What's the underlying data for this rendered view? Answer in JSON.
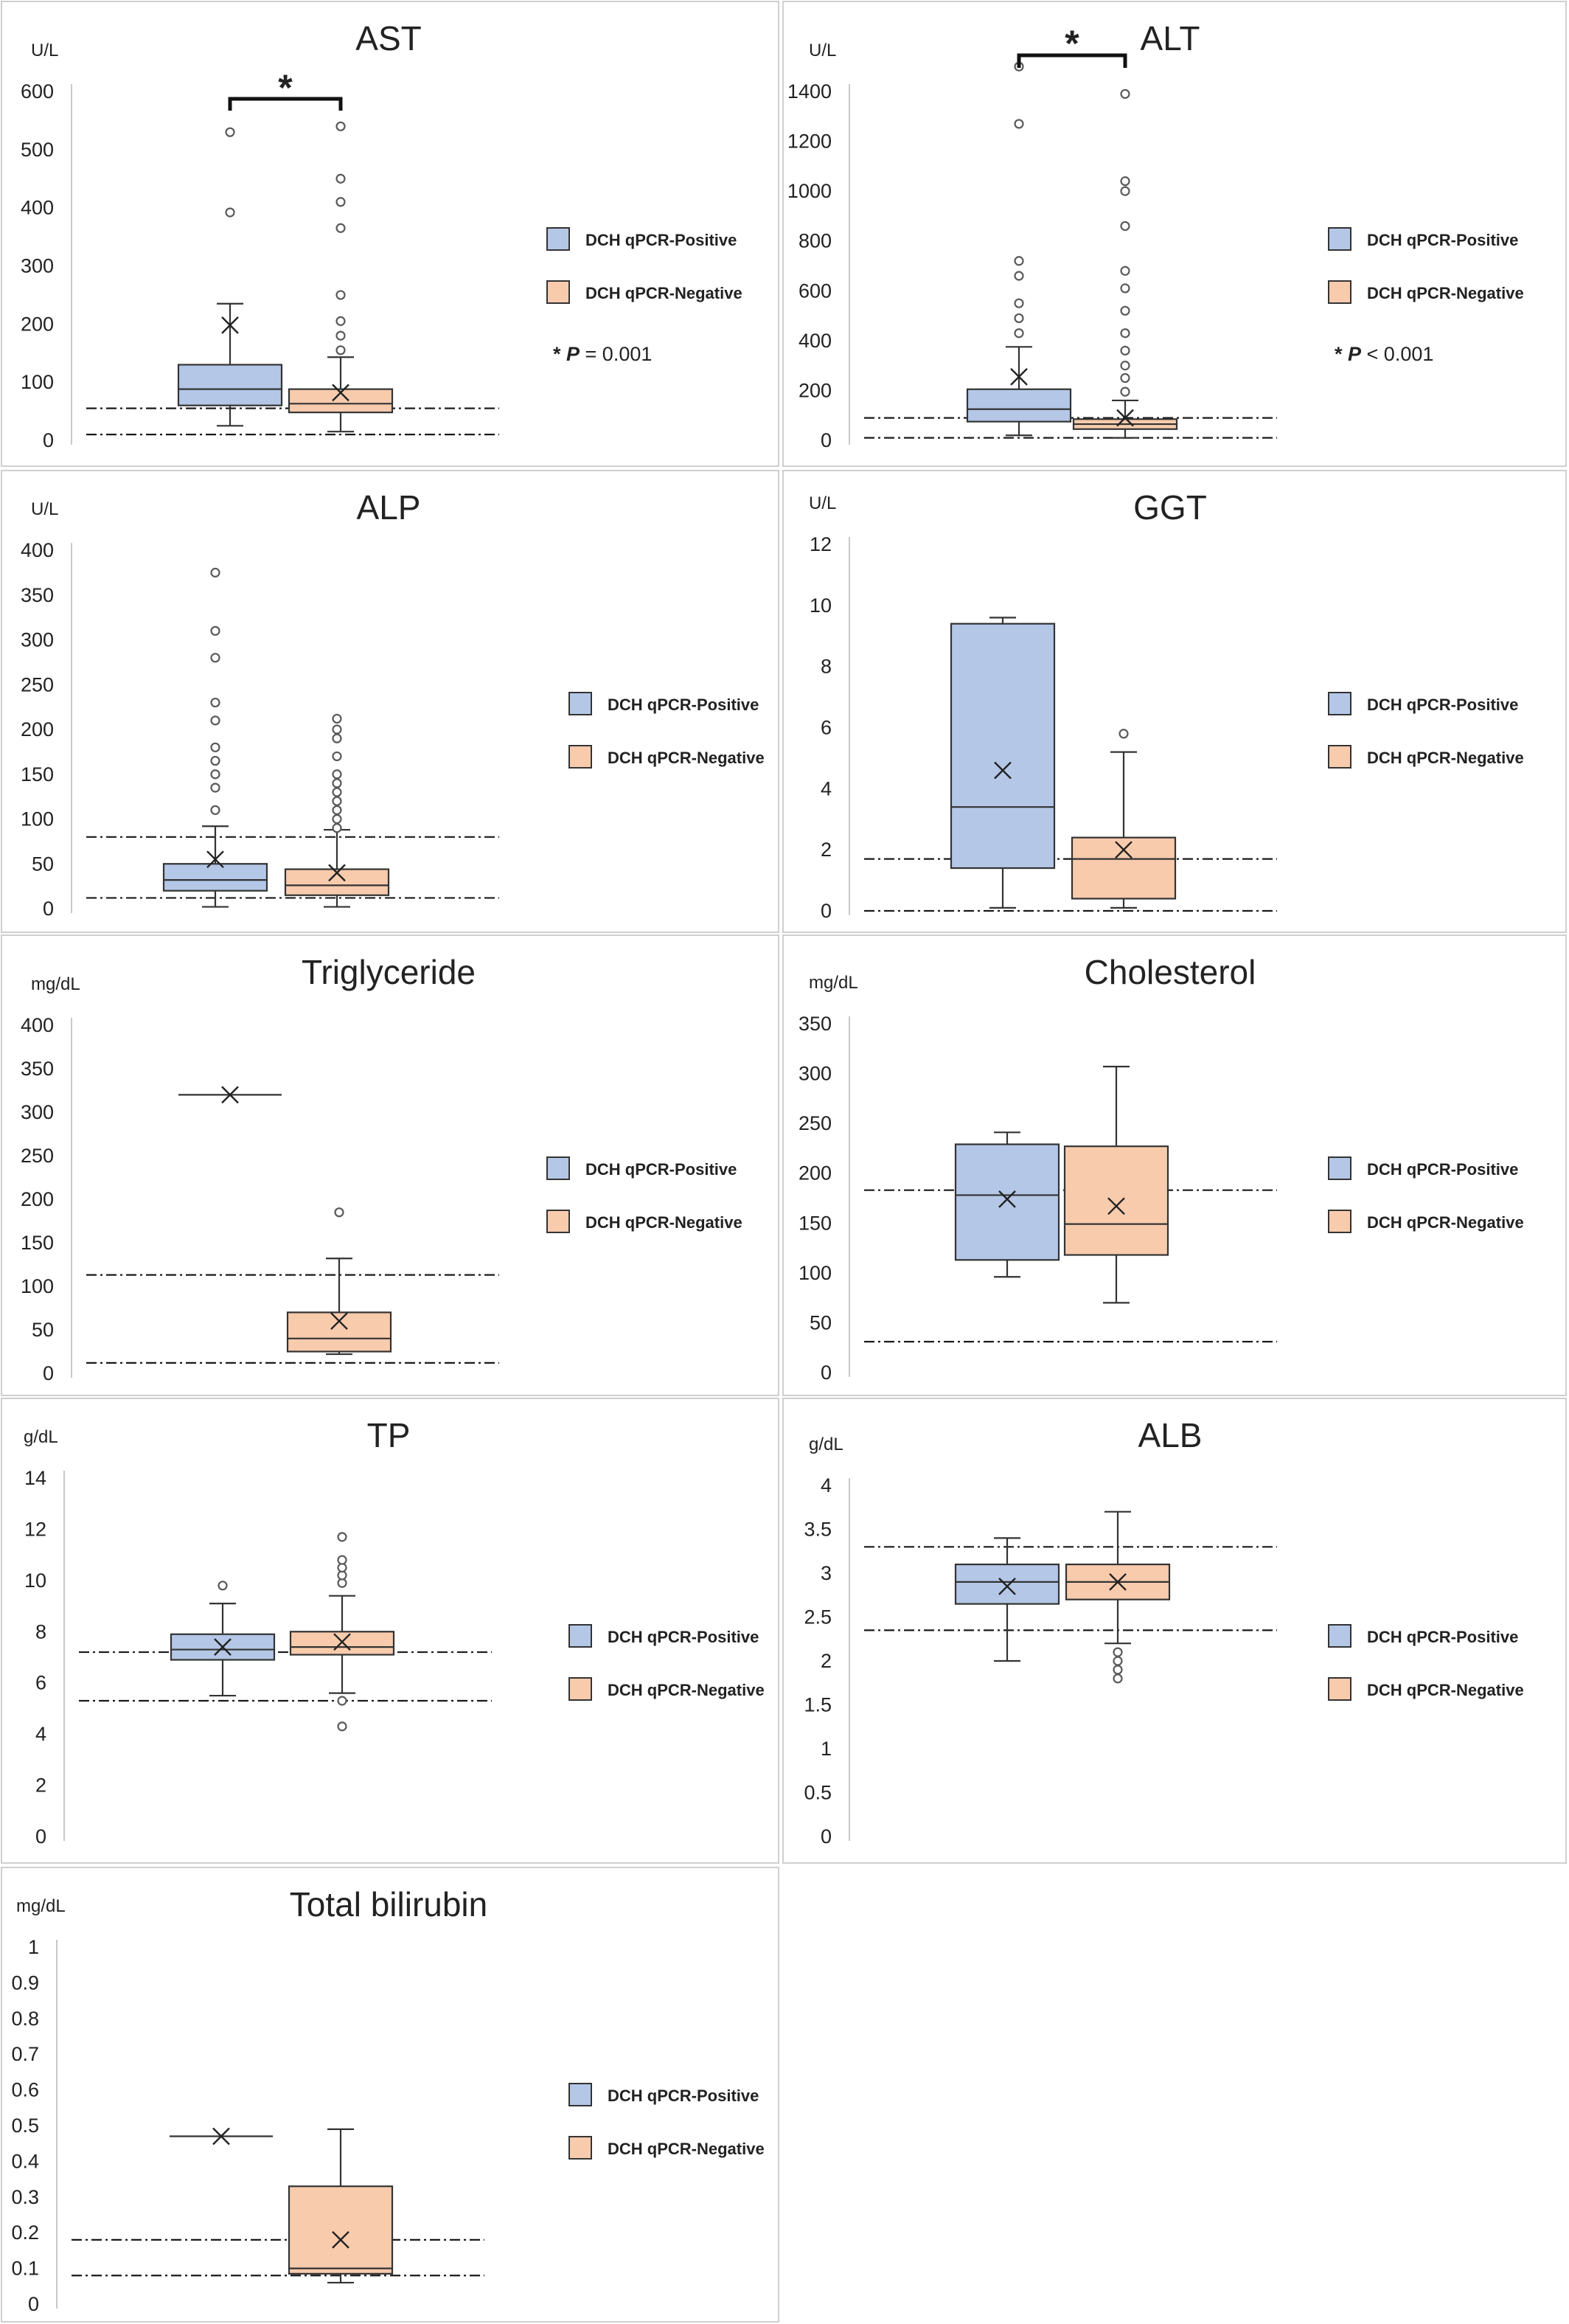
{
  "legend": {
    "positive": "DCH qPCR-Positive",
    "negative": "DCH qPCR-Negative"
  },
  "colors": {
    "positive_fill": "#b4c7e7",
    "negative_fill": "#f8cbad",
    "stroke": "#333333",
    "outlier_stroke": "#5a5a5a",
    "axis": "#c8c8c8",
    "ref_line": "#1a1a1a",
    "panel_border": "#cfcfcf"
  },
  "chart_data": [
    {
      "type": "box",
      "title": "AST",
      "unit": "U/L",
      "yticks": [
        0,
        100,
        200,
        300,
        400,
        500,
        600
      ],
      "ylim": [
        0,
        600
      ],
      "reference_lines": [
        55,
        10
      ],
      "significance": {
        "star": "*",
        "text": "P = 0.001",
        "star_prefix": "*",
        "p_label": "P",
        "p_rest": " = 0.001"
      },
      "series": [
        {
          "name": "DCH qPCR-Positive",
          "whisker_low": 25,
          "q1": 60,
          "median": 88,
          "q3": 130,
          "whisker_high": 235,
          "mean": 198,
          "outliers": [
            392,
            530
          ]
        },
        {
          "name": "DCH qPCR-Negative",
          "whisker_low": 15,
          "q1": 48,
          "median": 63,
          "q3": 88,
          "whisker_high": 143,
          "mean": 82,
          "outliers": [
            155,
            180,
            205,
            250,
            365,
            410,
            450,
            540
          ]
        }
      ]
    },
    {
      "type": "box",
      "title": "ALT",
      "unit": "U/L",
      "yticks": [
        0,
        200,
        400,
        600,
        800,
        1000,
        1200,
        1400
      ],
      "ylim": [
        0,
        1400
      ],
      "reference_lines": [
        90,
        10
      ],
      "significance": {
        "star": "*",
        "star_prefix": "*",
        "p_label": "P",
        "p_rest": " < 0.001"
      },
      "series": [
        {
          "name": "DCH qPCR-Positive",
          "whisker_low": 20,
          "q1": 75,
          "median": 125,
          "q3": 205,
          "whisker_high": 375,
          "mean": 255,
          "outliers": [
            430,
            490,
            550,
            660,
            720,
            1270,
            1500
          ]
        },
        {
          "name": "DCH qPCR-Negative",
          "whisker_low": 10,
          "q1": 45,
          "median": 65,
          "q3": 85,
          "whisker_high": 160,
          "mean": 90,
          "outliers": [
            195,
            250,
            300,
            360,
            430,
            520,
            610,
            680,
            860,
            1000,
            1040,
            1390
          ]
        }
      ]
    },
    {
      "type": "box",
      "title": "ALP",
      "unit": "U/L",
      "yticks": [
        0,
        50,
        100,
        150,
        200,
        250,
        300,
        350,
        400
      ],
      "ylim": [
        0,
        400
      ],
      "reference_lines": [
        80,
        12
      ],
      "series": [
        {
          "name": "DCH qPCR-Positive",
          "whisker_low": 2,
          "q1": 20,
          "median": 32,
          "q3": 50,
          "whisker_high": 92,
          "mean": 55,
          "outliers": [
            110,
            135,
            150,
            165,
            180,
            210,
            230,
            280,
            310,
            375
          ]
        },
        {
          "name": "DCH qPCR-Negative",
          "whisker_low": 2,
          "q1": 15,
          "median": 26,
          "q3": 44,
          "whisker_high": 88,
          "mean": 40,
          "outliers": [
            90,
            100,
            110,
            120,
            130,
            140,
            150,
            170,
            190,
            200,
            212
          ]
        }
      ]
    },
    {
      "type": "box",
      "title": "GGT",
      "unit": "U/L",
      "yticks": [
        0,
        2,
        4,
        6,
        8,
        10,
        12
      ],
      "ylim": [
        0,
        12
      ],
      "reference_lines": [
        1.7,
        0
      ],
      "series": [
        {
          "name": "DCH qPCR-Positive",
          "whisker_low": 0.1,
          "q1": 1.4,
          "median": 3.4,
          "q3": 9.4,
          "whisker_high": 9.6,
          "mean": 4.6,
          "outliers": []
        },
        {
          "name": "DCH qPCR-Negative",
          "whisker_low": 0.1,
          "q1": 0.4,
          "median": 1.7,
          "q3": 2.4,
          "whisker_high": 5.2,
          "mean": 2.0,
          "outliers": [
            5.8
          ]
        }
      ]
    },
    {
      "type": "box",
      "title": "Triglyceride",
      "unit": "mg/dL",
      "yticks": [
        0,
        50,
        100,
        150,
        200,
        250,
        300,
        350,
        400
      ],
      "ylim": [
        0,
        400
      ],
      "reference_lines": [
        113,
        12
      ],
      "series": [
        {
          "name": "DCH qPCR-Positive",
          "whisker_low": 320,
          "q1": 320,
          "median": 320,
          "q3": 320,
          "whisker_high": 320,
          "mean": 320,
          "outliers": []
        },
        {
          "name": "DCH qPCR-Negative",
          "whisker_low": 22,
          "q1": 25,
          "median": 40,
          "q3": 70,
          "whisker_high": 132,
          "mean": 60,
          "outliers": [
            185
          ]
        }
      ]
    },
    {
      "type": "box",
      "title": "Cholesterol",
      "unit": "mg/dL",
      "yticks": [
        0,
        50,
        100,
        150,
        200,
        250,
        300,
        350
      ],
      "ylim": [
        0,
        350
      ],
      "reference_lines": [
        183,
        31
      ],
      "series": [
        {
          "name": "DCH qPCR-Positive",
          "whisker_low": 96,
          "q1": 113,
          "median": 178,
          "q3": 229,
          "whisker_high": 241,
          "mean": 174,
          "outliers": []
        },
        {
          "name": "DCH qPCR-Negative",
          "whisker_low": 70,
          "q1": 118,
          "median": 149,
          "q3": 227,
          "whisker_high": 307,
          "mean": 167,
          "outliers": []
        }
      ]
    },
    {
      "type": "box",
      "title": "TP",
      "unit": "g/dL",
      "yticks": [
        0,
        2,
        4,
        6,
        8,
        10,
        12,
        14
      ],
      "ylim": [
        0,
        14
      ],
      "reference_lines": [
        7.2,
        5.3
      ],
      "series": [
        {
          "name": "DCH qPCR-Positive",
          "whisker_low": 5.5,
          "q1": 6.9,
          "median": 7.3,
          "q3": 7.9,
          "whisker_high": 9.1,
          "mean": 7.4,
          "outliers": [
            9.8
          ]
        },
        {
          "name": "DCH qPCR-Negative",
          "whisker_low": 5.6,
          "q1": 7.1,
          "median": 7.4,
          "q3": 8.0,
          "whisker_high": 9.4,
          "mean": 7.6,
          "outliers": [
            4.3,
            5.3,
            9.9,
            10.2,
            10.5,
            10.8,
            11.7
          ]
        }
      ]
    },
    {
      "type": "box",
      "title": "ALB",
      "unit": "g/dL",
      "yticks": [
        0,
        0.5,
        1,
        1.5,
        2,
        2.5,
        3,
        3.5,
        4
      ],
      "ylim": [
        0,
        4
      ],
      "reference_lines": [
        3.3,
        2.35
      ],
      "series": [
        {
          "name": "DCH qPCR-Positive",
          "whisker_low": 2.0,
          "q1": 2.65,
          "median": 2.9,
          "q3": 3.1,
          "whisker_high": 3.4,
          "mean": 2.85,
          "outliers": []
        },
        {
          "name": "DCH qPCR-Negative",
          "whisker_low": 2.2,
          "q1": 2.7,
          "median": 2.9,
          "q3": 3.1,
          "whisker_high": 3.7,
          "mean": 2.9,
          "outliers": [
            1.8,
            1.9,
            2.0,
            2.1
          ]
        }
      ]
    },
    {
      "type": "box",
      "title": "Total bilirubin",
      "unit": "mg/dL",
      "yticks": [
        0,
        0.1,
        0.2,
        0.3,
        0.4,
        0.5,
        0.6,
        0.7,
        0.8,
        0.9,
        1
      ],
      "ylim": [
        0,
        1
      ],
      "reference_lines": [
        0.18,
        0.08
      ],
      "series": [
        {
          "name": "DCH qPCR-Positive",
          "whisker_low": 0.47,
          "q1": 0.47,
          "median": 0.47,
          "q3": 0.47,
          "whisker_high": 0.47,
          "mean": 0.47,
          "outliers": []
        },
        {
          "name": "DCH qPCR-Negative",
          "whisker_low": 0.06,
          "q1": 0.085,
          "median": 0.1,
          "q3": 0.33,
          "whisker_high": 0.49,
          "mean": 0.18,
          "outliers": []
        }
      ]
    }
  ]
}
